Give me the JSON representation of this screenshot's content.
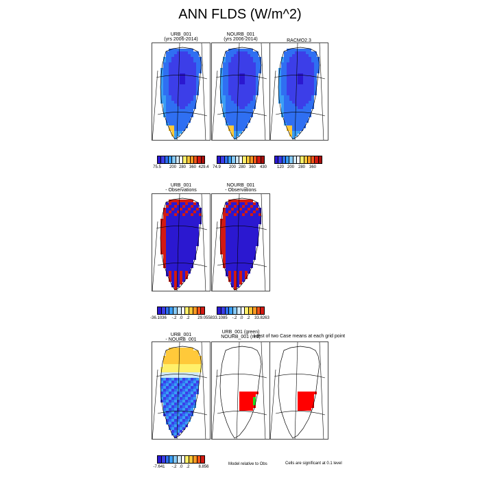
{
  "title": "ANN FLDS (W/m^2)",
  "row1": {
    "panels": [
      {
        "line1": "URB_001",
        "line2": "(yrs 2006-2014)"
      },
      {
        "line1": "NOURB_001",
        "line2": "(yrs 2006-2014)"
      },
      {
        "line1": "RACMO2.3",
        "line2": ""
      }
    ],
    "legends": [
      {
        "ticks": [
          "75.5",
          "200",
          "280",
          "360",
          "429.4"
        ]
      },
      {
        "ticks": [
          "74.9",
          "200",
          "280",
          "360",
          "430"
        ]
      },
      {
        "ticks": [
          "120",
          "200",
          "280",
          "360"
        ]
      }
    ]
  },
  "row2": {
    "panels": [
      {
        "line1": "URB_001",
        "line2": "- Observations"
      },
      {
        "line1": "NOURB_001",
        "line2": "- Observations"
      }
    ],
    "legends": [
      {
        "ticks": [
          "-36.1036",
          "-.2",
          ".0",
          ".2",
          "29.055833.1085"
        ]
      },
      {
        "ticks": [
          "-.2",
          ".0",
          ".2",
          "33.8263"
        ]
      }
    ]
  },
  "row3": {
    "panels": [
      {
        "line1": "URB_001",
        "line2": "- NOURB_001"
      },
      {
        "line1": "URB_001 (green)",
        "line2": "NOURB_001 (red)"
      }
    ],
    "ttest_title": "t-test of two Case means at each grid point",
    "legend": {
      "ticks": [
        "-7.641",
        "-.2",
        ".0",
        ".2",
        "8.856"
      ]
    },
    "note_model": "Model relative to Obs",
    "note_sig": "Cells are significant at 0.1 level"
  },
  "colors": {
    "abs_scale": [
      "#2b18d0",
      "#3c3ee8",
      "#2f6ff2",
      "#3a9ef5",
      "#86c9f5",
      "#cfe8f8",
      "#ffffff",
      "#fff06a",
      "#ffc93a",
      "#ff9a22",
      "#f4561a",
      "#d21a12",
      "#a8100c"
    ],
    "diff_scale": [
      "#2b18d0",
      "#3c3ee8",
      "#2f6ff2",
      "#3a9ef5",
      "#86c9f5",
      "#cfe8f8",
      "#ffffff",
      "#fff06a",
      "#ffc93a",
      "#ff9a22",
      "#f4561a",
      "#d21a12"
    ],
    "sig_red": "#ff0000",
    "sig_green": "#22dd22"
  }
}
